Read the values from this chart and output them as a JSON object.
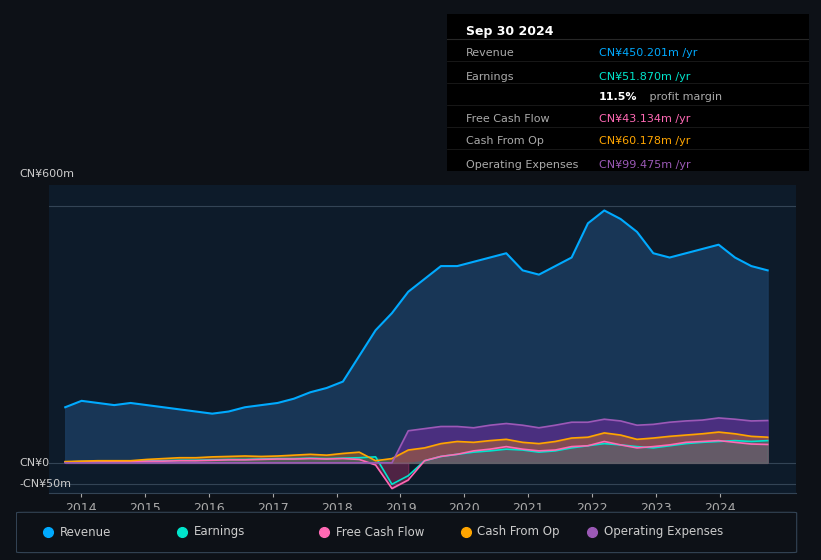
{
  "bg_color": "#0d1117",
  "plot_bg_color": "#0d1b2a",
  "ylabel_top": "CN¥600m",
  "ylabel_zero": "CN¥0",
  "ylabel_neg": "-CN¥50m",
  "ylim": [
    -70,
    650
  ],
  "xlim_start": 2013.5,
  "xlim_end": 2025.2,
  "xticks": [
    2014,
    2015,
    2016,
    2017,
    2018,
    2019,
    2020,
    2021,
    2022,
    2023,
    2024
  ],
  "revenue_color": "#00aaff",
  "earnings_color": "#00e5cc",
  "fcf_color": "#ff69b4",
  "cashop_color": "#ffa500",
  "opex_color": "#9b59b6",
  "revenue_fill_color": "#1a3a5c",
  "legend_entries": [
    "Revenue",
    "Earnings",
    "Free Cash Flow",
    "Cash From Op",
    "Operating Expenses"
  ],
  "legend_colors": [
    "#00aaff",
    "#00e5cc",
    "#ff69b4",
    "#ffa500",
    "#9b59b6"
  ],
  "info_box": {
    "date": "Sep 30 2024",
    "revenue_label": "Revenue",
    "revenue_value": "CN¥450.201m",
    "earnings_label": "Earnings",
    "earnings_value": "CN¥51.870m",
    "margin_text": "11.5% profit margin",
    "margin_pct": "11.5%",
    "margin_rest": " profit margin",
    "fcf_label": "Free Cash Flow",
    "fcf_value": "CN¥43.134m",
    "cashop_label": "Cash From Op",
    "cashop_value": "CN¥60.178m",
    "opex_label": "Operating Expenses",
    "opex_value": "CN¥99.475m"
  }
}
